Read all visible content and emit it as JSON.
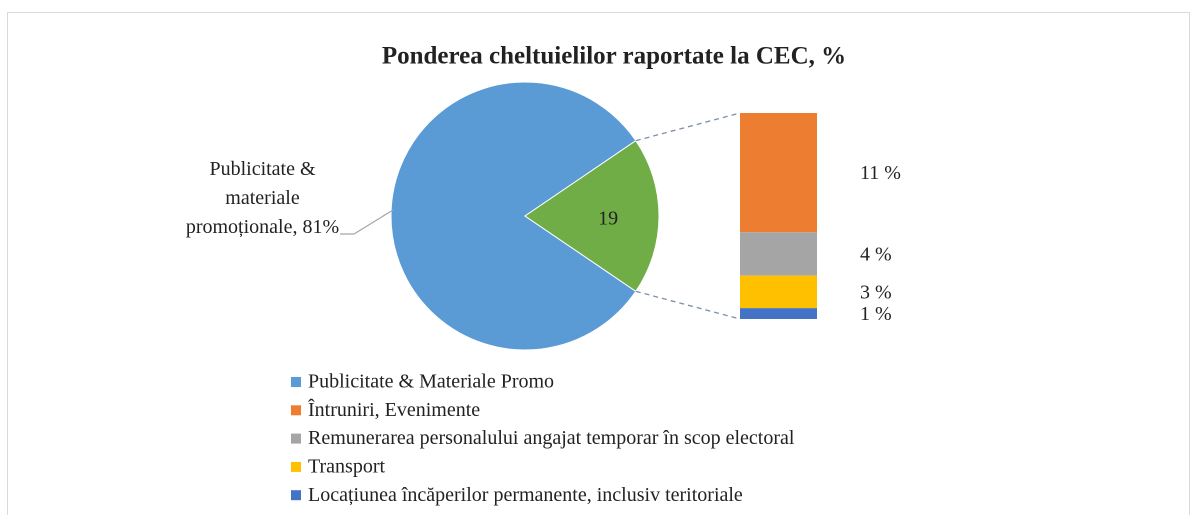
{
  "chart_data": {
    "type": "bar-of-pie",
    "title": "Ponderea cheltuielilor raportate la CEC, %",
    "legend": [
      {
        "name": "Publicitate & Materiale Promo",
        "color": "#5b9bd5"
      },
      {
        "name": "Întruniri, Evenimente",
        "color": "#ed7d31"
      },
      {
        "name": "Remunerarea personalului angajat temporar în scop electoral",
        "color": "#a5a5a5"
      },
      {
        "name": "Transport",
        "color": "#ffc000"
      },
      {
        "name": "Locațiunea încăperilor permanente, inclusiv teritoriale",
        "color": "#4472c4"
      }
    ],
    "pie": {
      "values": [
        81,
        19
      ],
      "value_labels": [
        "Publicitate & materiale promoționale, 81%",
        "19"
      ],
      "colors": [
        "#5b9bd5",
        "#70ad47"
      ]
    },
    "bar": {
      "values": [
        11,
        4,
        3,
        1
      ],
      "value_labels": [
        "11 %",
        "4 %",
        "3 %",
        "1 %"
      ]
    }
  }
}
